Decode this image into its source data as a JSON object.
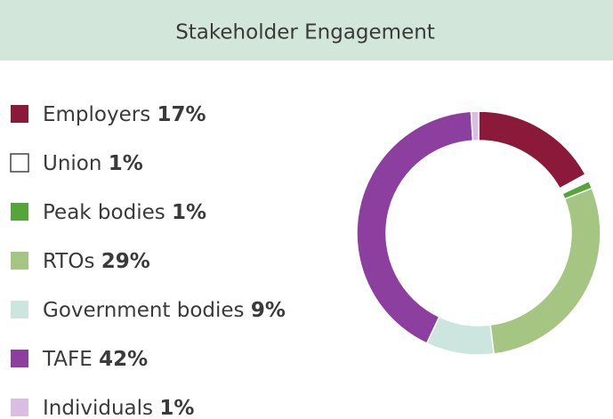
{
  "chart_data": {
    "type": "donut",
    "title": "Stakeholder Engagement",
    "categories": [
      "Employers",
      "Union",
      "Peak bodies",
      "RTOs",
      "Government bodies",
      "TAFE",
      "Individuals"
    ],
    "values": [
      17,
      1,
      1,
      29,
      9,
      42,
      1
    ],
    "value_labels": [
      "17%",
      "1%",
      "1%",
      "29%",
      "9%",
      "42%",
      "1%"
    ],
    "colors": [
      "#8b1a3a",
      "#ffffff",
      "#55a53a",
      "#a5c682",
      "#cde5df",
      "#8d3f9f",
      "#d9bde3"
    ],
    "legend": "left"
  }
}
